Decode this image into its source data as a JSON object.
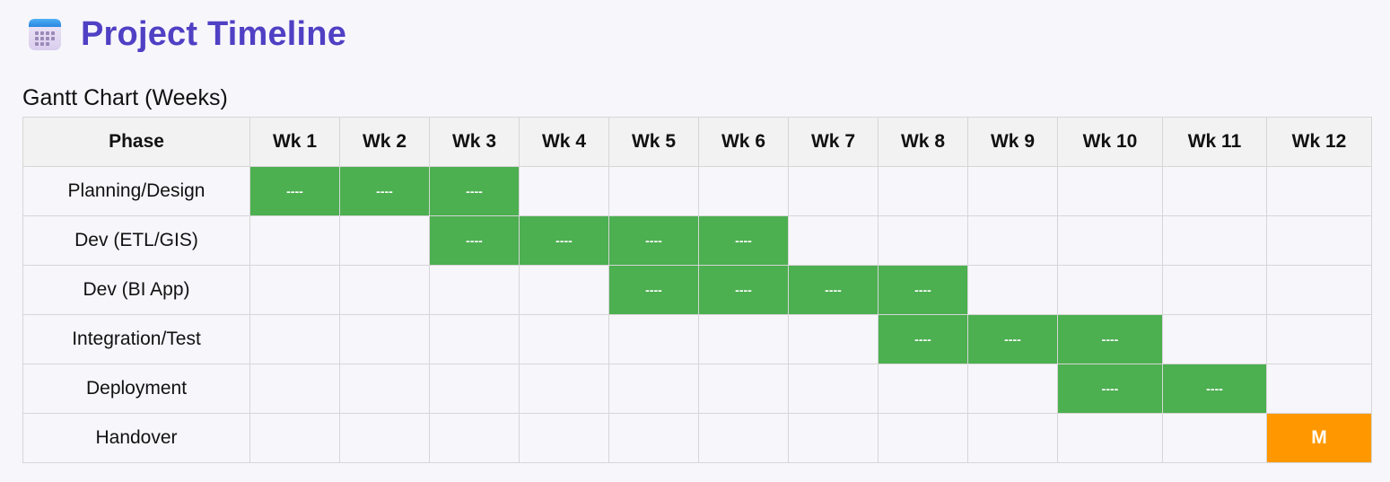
{
  "header": {
    "title": "Project Timeline",
    "icon": "calendar-icon"
  },
  "gantt": {
    "subtitle": "Gantt Chart (Weeks)",
    "phase_header": "Phase",
    "weeks": [
      "Wk 1",
      "Wk 2",
      "Wk 3",
      "Wk 4",
      "Wk 5",
      "Wk 6",
      "Wk 7",
      "Wk 8",
      "Wk 9",
      "Wk 10",
      "Wk 11",
      "Wk 12"
    ],
    "active_marker": "----",
    "milestone_marker": "M",
    "colors": {
      "active": "#4caf50",
      "milestone": "#ff9800",
      "title": "#5040c4"
    },
    "rows": [
      {
        "phase": "Planning/Design",
        "active_weeks": [
          1,
          2,
          3
        ],
        "milestone_weeks": []
      },
      {
        "phase": "Dev (ETL/GIS)",
        "active_weeks": [
          3,
          4,
          5,
          6
        ],
        "milestone_weeks": []
      },
      {
        "phase": "Dev (BI App)",
        "active_weeks": [
          5,
          6,
          7,
          8
        ],
        "milestone_weeks": []
      },
      {
        "phase": "Integration/Test",
        "active_weeks": [
          8,
          9,
          10
        ],
        "milestone_weeks": []
      },
      {
        "phase": "Deployment",
        "active_weeks": [
          10,
          11
        ],
        "milestone_weeks": []
      },
      {
        "phase": "Handover",
        "active_weeks": [],
        "milestone_weeks": [
          12
        ]
      }
    ]
  }
}
